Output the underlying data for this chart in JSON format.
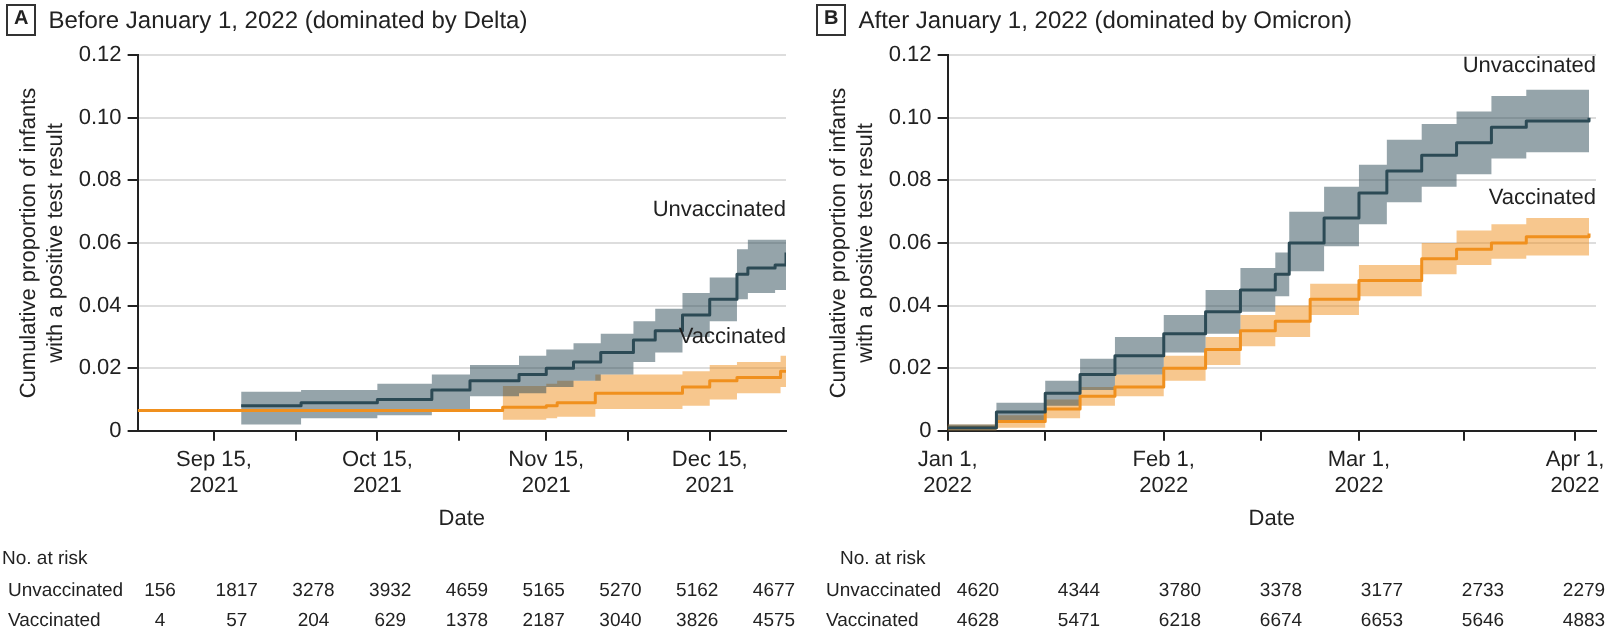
{
  "chart_data": [
    {
      "type": "step",
      "title": "Before January 1, 2022 (dominated by Delta)",
      "xlabel": "Date",
      "ylabel": "Cumulative proportion of infants with a positive test result",
      "xlim": [
        "2021-09-01",
        "2021-12-29"
      ],
      "xticks": [
        {
          "value": "2021-09-15",
          "label": "Sep 15, 2021"
        },
        {
          "value": "2021-09-30",
          "label": null
        },
        {
          "value": "2021-10-15",
          "label": "Oct 15, 2021"
        },
        {
          "value": "2021-10-30",
          "label": null
        },
        {
          "value": "2021-11-15",
          "label": "Nov 15, 2021"
        },
        {
          "value": "2021-11-30",
          "label": null
        },
        {
          "value": "2021-12-15",
          "label": "Dec 15, 2021"
        }
      ],
      "ylim": [
        0,
        0.12
      ],
      "yticks": [
        0,
        0.02,
        0.04,
        0.06,
        0.08,
        {
          "value": 0.1,
          "label": "0.10"
        },
        0.12
      ],
      "grid": "y",
      "legend": false,
      "marker": "none",
      "series": [
        {
          "name": "Unvaccinated",
          "color": "#2c4a55",
          "x": [
            "2021-09-20",
            "2021-10-01",
            "2021-10-15",
            "2021-10-25",
            "2021-11-01",
            "2021-11-10",
            "2021-11-15",
            "2021-11-20",
            "2021-11-25",
            "2021-12-01",
            "2021-12-05",
            "2021-12-10",
            "2021-12-15",
            "2021-12-20",
            "2021-12-22",
            "2021-12-27",
            "2021-12-29"
          ],
          "values": [
            0.008,
            0.009,
            0.01,
            0.013,
            0.016,
            0.018,
            0.02,
            0.022,
            0.025,
            0.029,
            0.032,
            0.037,
            0.042,
            0.05,
            0.052,
            0.053,
            0.057
          ],
          "lower": [
            0.002,
            0.004,
            0.005,
            0.007,
            0.011,
            0.012,
            0.014,
            0.016,
            0.018,
            0.022,
            0.025,
            0.03,
            0.035,
            0.042,
            0.044,
            0.045,
            0.049
          ],
          "upper": [
            0.0125,
            0.013,
            0.015,
            0.018,
            0.021,
            0.024,
            0.026,
            0.028,
            0.031,
            0.035,
            0.039,
            0.044,
            0.049,
            0.058,
            0.061,
            0.061,
            0.065
          ]
        },
        {
          "name": "Vaccinated",
          "color": "#f0901e",
          "x": [
            "2021-09-01",
            "2021-11-07",
            "2021-11-15",
            "2021-11-17",
            "2021-11-24",
            "2021-12-10",
            "2021-12-15",
            "2021-12-20",
            "2021-12-28",
            "2021-12-29"
          ],
          "values": [
            0.0065,
            0.0075,
            0.008,
            0.009,
            0.012,
            0.014,
            0.016,
            0.017,
            0.019,
            0.019
          ],
          "lower": [
            null,
            0.0035,
            0.004,
            0.0045,
            0.007,
            0.008,
            0.01,
            0.012,
            0.014,
            0.014
          ],
          "upper": [
            null,
            0.0143,
            0.015,
            0.016,
            0.018,
            0.019,
            0.021,
            0.022,
            0.024,
            0.0245
          ]
        }
      ],
      "annotations": [
        "A",
        "No. at risk",
        "Unvaccinated 156 1817 3278 3932 4659 5165 5270 5162 4677",
        "Vaccinated 4 57 204 629 1378 2187 3040 3826 4575"
      ]
    },
    {
      "type": "step",
      "title": "After January 1, 2022 (dominated by Omicron)",
      "xlabel": "Date",
      "ylabel": "Cumulative proportion of infants with a positive test result",
      "xlim": [
        "2022-01-01",
        "2022-04-04"
      ],
      "xticks": [
        {
          "value": "2022-01-01",
          "label": "Jan 1, 2022"
        },
        {
          "value": "2022-01-15",
          "label": null
        },
        {
          "value": "2022-02-01",
          "label": "Feb 1, 2022"
        },
        {
          "value": "2022-02-15",
          "label": null
        },
        {
          "value": "2022-03-01",
          "label": "Mar 1, 2022"
        },
        {
          "value": "2022-03-16",
          "label": null
        },
        {
          "value": "2022-04-01",
          "label": "Apr 1, 2022"
        }
      ],
      "ylim": [
        0,
        0.12
      ],
      "yticks": [
        0,
        0.02,
        0.04,
        0.06,
        0.08,
        {
          "value": 0.1,
          "label": "0.10"
        },
        0.12
      ],
      "grid": "y",
      "legend": false,
      "marker": "none",
      "series": [
        {
          "name": "Unvaccinated",
          "color": "#2c4a55",
          "x": [
            "2022-01-01",
            "2022-01-08",
            "2022-01-15",
            "2022-01-20",
            "2022-01-25",
            "2022-02-01",
            "2022-02-07",
            "2022-02-12",
            "2022-02-17",
            "2022-02-19",
            "2022-02-24",
            "2022-03-01",
            "2022-03-05",
            "2022-03-10",
            "2022-03-15",
            "2022-03-20",
            "2022-03-25",
            "2022-04-03"
          ],
          "values": [
            0.001,
            0.006,
            0.012,
            0.018,
            0.024,
            0.031,
            0.038,
            0.045,
            0.05,
            0.06,
            0.068,
            0.076,
            0.083,
            0.088,
            0.092,
            0.097,
            0.099,
            0.1
          ],
          "lower": [
            0,
            0.003,
            0.008,
            0.013,
            0.018,
            0.025,
            0.031,
            0.038,
            0.043,
            0.051,
            0.059,
            0.066,
            0.073,
            0.078,
            0.082,
            0.087,
            0.089,
            0.09
          ],
          "upper": [
            0.002,
            0.009,
            0.016,
            0.023,
            0.03,
            0.037,
            0.045,
            0.052,
            0.057,
            0.07,
            0.078,
            0.085,
            0.093,
            0.098,
            0.102,
            0.107,
            0.109,
            0.111
          ]
        },
        {
          "name": "Vaccinated",
          "color": "#f0901e",
          "x": [
            "2022-01-01",
            "2022-01-08",
            "2022-01-15",
            "2022-01-20",
            "2022-01-25",
            "2022-02-01",
            "2022-02-07",
            "2022-02-12",
            "2022-02-17",
            "2022-02-22",
            "2022-03-01",
            "2022-03-10",
            "2022-03-15",
            "2022-03-20",
            "2022-03-25",
            "2022-04-03"
          ],
          "values": [
            0.001,
            0.003,
            0.007,
            0.011,
            0.014,
            0.02,
            0.026,
            0.032,
            0.035,
            0.042,
            0.048,
            0.055,
            0.058,
            0.06,
            0.062,
            0.063
          ],
          "lower": [
            0,
            0.001,
            0.004,
            0.008,
            0.011,
            0.016,
            0.021,
            0.027,
            0.03,
            0.037,
            0.043,
            0.05,
            0.053,
            0.055,
            0.056,
            0.057
          ],
          "upper": [
            0.002,
            0.005,
            0.01,
            0.014,
            0.018,
            0.024,
            0.03,
            0.037,
            0.04,
            0.047,
            0.053,
            0.06,
            0.064,
            0.066,
            0.068,
            0.069
          ]
        }
      ],
      "annotations": [
        "B",
        "No. at risk",
        "Unvaccinated 4620 4344 3780 3378 3177 2733 2279",
        "Vaccinated 4628 5471 6218 6674 6653 5646 4883"
      ]
    }
  ]
}
